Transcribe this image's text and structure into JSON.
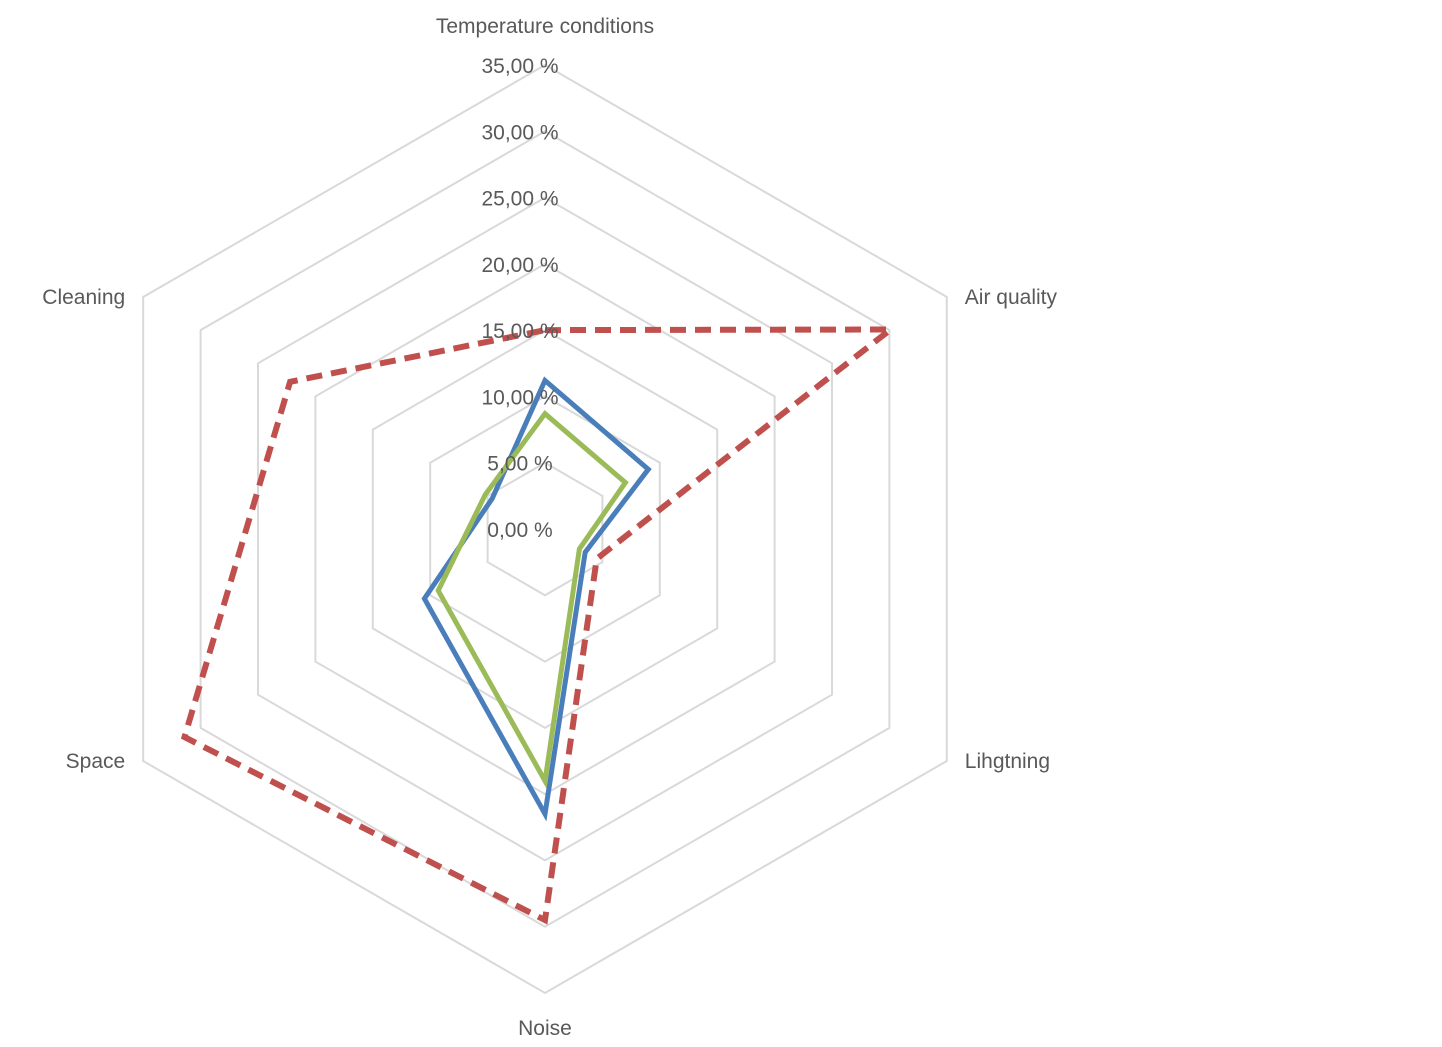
{
  "chart_data": {
    "type": "radar",
    "axes": [
      "Temperature conditions",
      "Air quality",
      "Lihgtning",
      "Noise",
      "Space",
      "Cleaning"
    ],
    "rlim": [
      0,
      35
    ],
    "tick_step": 5,
    "tick_labels": [
      "0,00 %",
      "5,00 %",
      "10,00 %",
      "15,00 %",
      "20,00 %",
      "25,00 %",
      "30,00 %",
      "35,00 %"
    ],
    "grid": true,
    "legend": "none",
    "series": [
      {
        "values": [
          11.2,
          9.0,
          3.5,
          21.5,
          10.5,
          4.6
        ],
        "color": "#4a7ebb",
        "style": "solid"
      },
      {
        "values": [
          8.7,
          7.0,
          3.0,
          19.0,
          9.3,
          5.2
        ],
        "color": "#9bbb59",
        "style": "solid"
      },
      {
        "values": [
          15.0,
          30.1,
          4.5,
          29.5,
          31.4,
          22.2
        ],
        "color": "#c0504d",
        "style": "dashed"
      }
    ]
  }
}
